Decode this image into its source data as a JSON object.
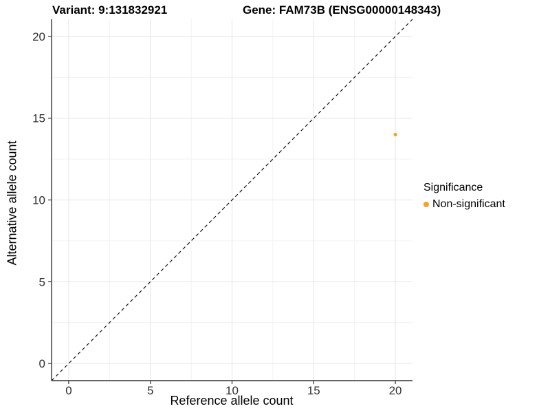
{
  "header": {
    "title_left": "Variant: 9:131832921",
    "title_right": "Gene: FAM73B (ENSG00000148343)"
  },
  "chart_data": {
    "type": "scatter",
    "title_left": "Variant: 9:131832921",
    "title_right": "Gene: FAM73B (ENSG00000148343)",
    "xlabel": "Reference allele count",
    "ylabel": "Alternative allele count",
    "xlim": [
      -1.05,
      21.05
    ],
    "ylim": [
      -1.05,
      21.05
    ],
    "x_major_ticks": [
      0,
      5,
      10,
      15,
      20
    ],
    "y_major_ticks": [
      0,
      5,
      10,
      15,
      20
    ],
    "x_minor_ticks": [
      2.5,
      7.5,
      12.5,
      17.5
    ],
    "y_minor_ticks": [
      2.5,
      7.5,
      12.5,
      17.5
    ],
    "grid": "major and minor gridlines on white panel",
    "identity_line": {
      "slope": 1,
      "intercept": 0,
      "style": "dashed",
      "color": "#000000"
    },
    "series": [
      {
        "name": "Non-significant",
        "color": "#F8A02C",
        "points": [
          {
            "x": 20,
            "y": 14
          }
        ]
      }
    ],
    "legend": {
      "position": "right",
      "title": "Significance",
      "entries": [
        {
          "label": "Non-significant",
          "color": "#F8A02C",
          "marker": "circle"
        }
      ]
    }
  },
  "colors": {
    "background": "#FFFFFF",
    "point_orange": "#F8A02C",
    "axis_line": "#333333",
    "tick_label": "#303030",
    "grid_major": "#E5E5E5",
    "grid_minor": "#F2F2F2"
  }
}
